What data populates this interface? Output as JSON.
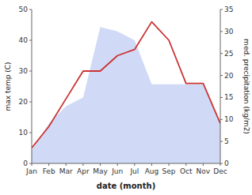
{
  "chart_data": {
    "type": "line",
    "xlabel": "date (month)",
    "ylabel": "max temp (C)",
    "y2label": "med. precipitation (kg/m2)",
    "categories": [
      "Jan",
      "Feb",
      "Mar",
      "Apr",
      "May",
      "Jun",
      "Jul",
      "Aug",
      "Sep",
      "Oct",
      "Nov",
      "Dec"
    ],
    "series": [
      {
        "type": "area",
        "axis": "y2",
        "color": "#aabbee",
        "values": [
          3,
          9,
          13,
          15,
          31,
          30,
          28,
          18,
          18,
          18,
          18,
          9
        ]
      },
      {
        "type": "line",
        "color": "#cc3333",
        "values": [
          5,
          12,
          21,
          30,
          30,
          35,
          37,
          46,
          40,
          26,
          26,
          13
        ]
      }
    ],
    "ylim": [
      0,
      50
    ],
    "yticks": [
      0,
      10,
      20,
      30,
      40,
      50
    ],
    "y2lim": [
      0,
      35
    ],
    "y2ticks": [
      0,
      5,
      10,
      15,
      20,
      25,
      30,
      35
    ],
    "grid": false
  }
}
